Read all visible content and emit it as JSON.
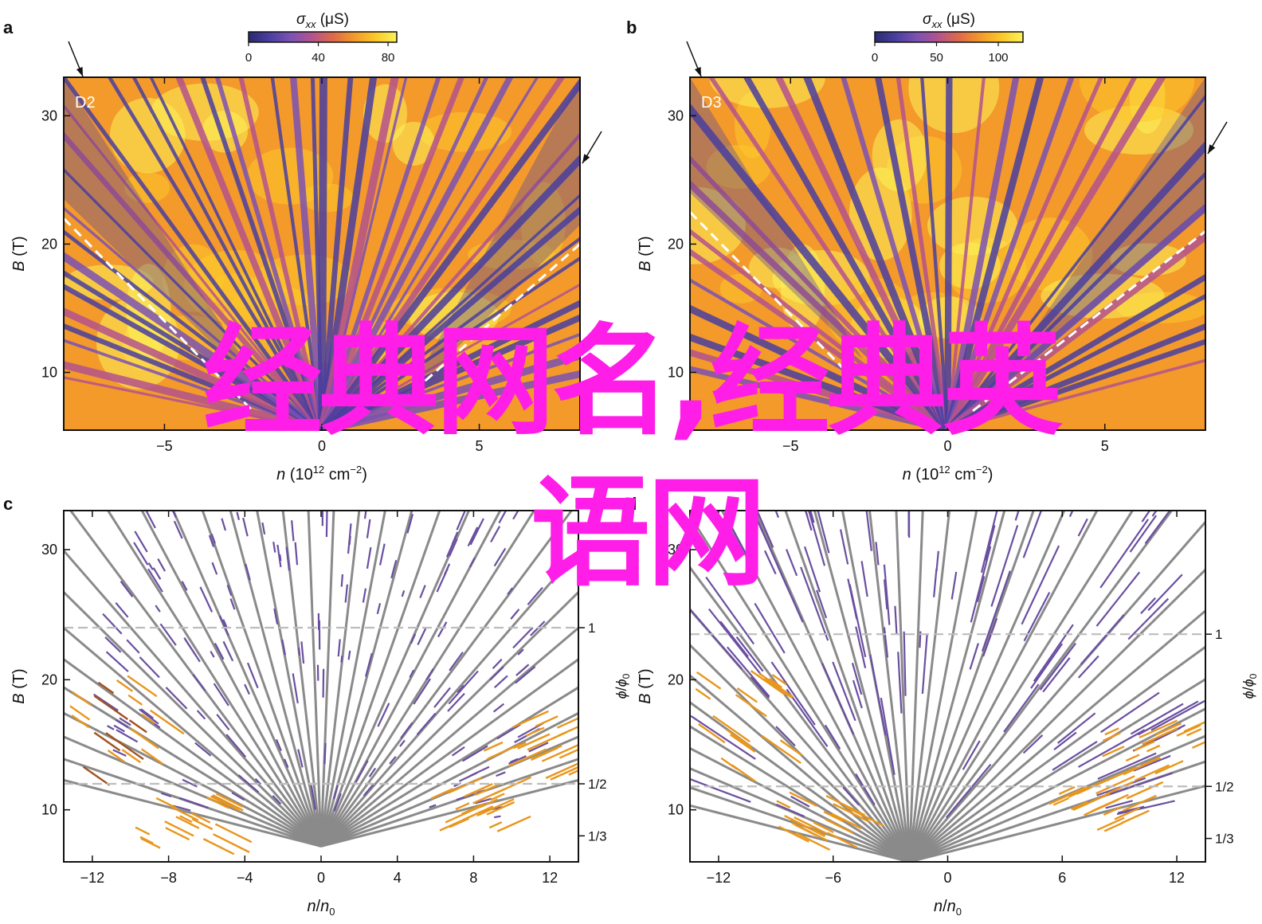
{
  "overlay": {
    "line1": "经典网名,经典英",
    "line2": "语网",
    "color": "#ff1de8"
  },
  "palette": {
    "colormap": [
      "#2b2a6f",
      "#4a3fa0",
      "#7c52b3",
      "#b4538d",
      "#e06a48",
      "#f39a2b",
      "#fbc829",
      "#fbf25a"
    ],
    "gray_line": "#8a8a8a",
    "purple_line": "#6a4fa0",
    "orange_line": "#e8961c",
    "dashed_white": "#ffffff",
    "dashed_gray": "#bdbdbd"
  },
  "chart_data": [
    {
      "panel": "a",
      "type": "heatmap",
      "label": "D2",
      "xlabel_italic": "n",
      "xlabel_rest": " (10",
      "xlabel_sup": "12",
      "xlabel_unit": " cm",
      "xlabel_unitsup": "−2",
      "xlabel_close": ")",
      "ylabel_italic": "B",
      "ylabel_rest": " (T)",
      "xlim": [
        -8.2,
        8.2
      ],
      "ylim": [
        5.5,
        33
      ],
      "xticks": [
        -5,
        0,
        5
      ],
      "yticks": [
        10,
        20,
        30
      ],
      "colorbar": {
        "title_sigma": "σ",
        "title_sub": "xx",
        "title_unit": " (μS)",
        "range": [
          0,
          85
        ],
        "ticks": [
          0,
          40,
          80
        ]
      },
      "fan_origin": [
        0,
        5.5
      ],
      "dashed_boundary": {
        "left": [
          [
            -8.2,
            22
          ],
          [
            -2.2,
            7
          ]
        ],
        "right": [
          [
            2.2,
            7
          ],
          [
            8.2,
            20
          ]
        ]
      }
    },
    {
      "panel": "b",
      "type": "heatmap",
      "label": "D3",
      "xlabel_italic": "n",
      "xlabel_rest": " (10",
      "xlabel_sup": "12",
      "xlabel_unit": " cm",
      "xlabel_unitsup": "−2",
      "xlabel_close": ")",
      "ylabel_italic": "B",
      "ylabel_rest": " (T)",
      "xlim": [
        -8.2,
        8.2
      ],
      "ylim": [
        5.5,
        33
      ],
      "xticks": [
        -5,
        0,
        5
      ],
      "yticks": [
        10,
        20,
        30
      ],
      "colorbar": {
        "title_sigma": "σ",
        "title_sub": "xx",
        "title_unit": " (μS)",
        "range": [
          0,
          120
        ],
        "ticks": [
          0,
          50,
          100
        ]
      },
      "fan_origin": [
        0,
        5.5
      ],
      "dashed_boundary": {
        "left": [
          [
            -8.2,
            22.5
          ],
          [
            -3.2,
            10
          ]
        ],
        "right": [
          [
            0.8,
            7
          ],
          [
            8.2,
            21
          ]
        ]
      }
    },
    {
      "panel": "c",
      "type": "line",
      "xlabel_italic": "n",
      "xlabel_rest": "/",
      "xlabel_italic2": "n",
      "xlabel_sub": "0",
      "ylabel_italic": "B",
      "ylabel_rest": " (T)",
      "y2label_italic": "ϕ",
      "y2label_rest": "/",
      "y2label_italic2": "ϕ",
      "y2label_sub": "0",
      "xlim": [
        -13.5,
        13.5
      ],
      "ylim": [
        6,
        33
      ],
      "xticks": [
        -12,
        -8,
        -4,
        0,
        4,
        8,
        12
      ],
      "yticks": [
        10,
        20,
        30
      ],
      "y2ticks": [
        {
          "label": "1",
          "b": 24
        },
        {
          "label": "1/2",
          "b": 12
        },
        {
          "label": "1/3",
          "b": 8
        }
      ],
      "fan_origin": [
        0,
        7.2
      ]
    },
    {
      "panel": "d",
      "type": "line",
      "xlabel_italic": "n",
      "xlabel_rest": "/",
      "xlabel_italic2": "n",
      "xlabel_sub": "0",
      "ylabel_italic": "B",
      "ylabel_rest": " (T)",
      "y2label_italic": "ϕ",
      "y2label_rest": "/",
      "y2label_italic2": "ϕ",
      "y2label_sub": "0",
      "xlim": [
        -13.5,
        13.5
      ],
      "ylim": [
        6,
        33
      ],
      "xticks": [
        -12,
        -6,
        0,
        6,
        12
      ],
      "yticks": [
        10,
        20,
        30
      ],
      "y2ticks": [
        {
          "label": "1",
          "b": 23.5
        },
        {
          "label": "1/2",
          "b": 11.8
        },
        {
          "label": "1/3",
          "b": 7.8
        }
      ],
      "fan_origin": [
        -2,
        6
      ]
    }
  ]
}
